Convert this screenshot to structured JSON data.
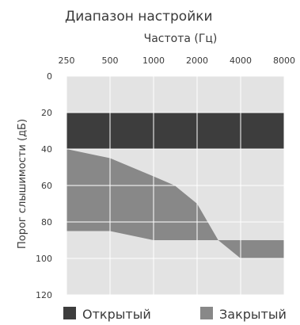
{
  "chart_data": {
    "type": "area",
    "title": "Диапазон настройки",
    "xlabel": "Частота (Гц)",
    "ylabel": "Порог слышимости (дБ)",
    "x_ticks": [
      "250",
      "500",
      "1000",
      "2000",
      "4000",
      "8000"
    ],
    "x_scale": "log",
    "y_ticks": [
      "0",
      "20",
      "40",
      "60",
      "80",
      "100",
      "120"
    ],
    "ylim": [
      0,
      120
    ],
    "y_inverted": true,
    "grid": true,
    "legend_position": "bottom",
    "series": [
      {
        "name": "Открытый",
        "color": "#3d3d3d",
        "upper": [
          [
            250,
            20
          ],
          [
            8000,
            20
          ]
        ],
        "lower": [
          [
            250,
            40
          ],
          [
            8000,
            40
          ]
        ]
      },
      {
        "name": "Закрытый",
        "color": "#888888",
        "upper": [
          [
            250,
            40
          ],
          [
            500,
            45
          ],
          [
            1000,
            55
          ],
          [
            1400,
            60
          ],
          [
            2000,
            70
          ],
          [
            2800,
            90
          ],
          [
            4000,
            100
          ],
          [
            8000,
            100
          ]
        ],
        "lower": [
          [
            250,
            85
          ],
          [
            500,
            85
          ],
          [
            1000,
            90
          ],
          [
            2000,
            90
          ],
          [
            8000,
            90
          ]
        ]
      }
    ],
    "colors": {
      "plot_background": "#e3e3e3",
      "grid": "#ffffff"
    }
  }
}
